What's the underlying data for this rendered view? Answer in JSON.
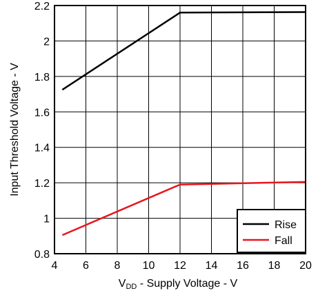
{
  "chart_data": {
    "type": "line",
    "xlabel_main": "V",
    "xlabel_sub": "DD",
    "xlabel_rest": " - Supply Voltage - V",
    "ylabel": "Input Threshold Voltage - V",
    "xlim": [
      4,
      20
    ],
    "ylim": [
      0.8,
      2.2
    ],
    "x_ticks": [
      "4",
      "6",
      "8",
      "10",
      "12",
      "14",
      "16",
      "18",
      "20"
    ],
    "y_ticks": [
      "0.8",
      "1",
      "1.2",
      "1.4",
      "1.6",
      "1.8",
      "2",
      "2.2"
    ],
    "grid": true,
    "legend_position": "bottom-right",
    "series": [
      {
        "name": "Rise",
        "color": "#000000",
        "x": [
          4.5,
          12,
          20
        ],
        "y": [
          1.725,
          2.16,
          2.163
        ]
      },
      {
        "name": "Fall",
        "color": "#e8151b",
        "x": [
          4.5,
          12,
          20
        ],
        "y": [
          0.905,
          1.19,
          1.205
        ]
      }
    ]
  }
}
